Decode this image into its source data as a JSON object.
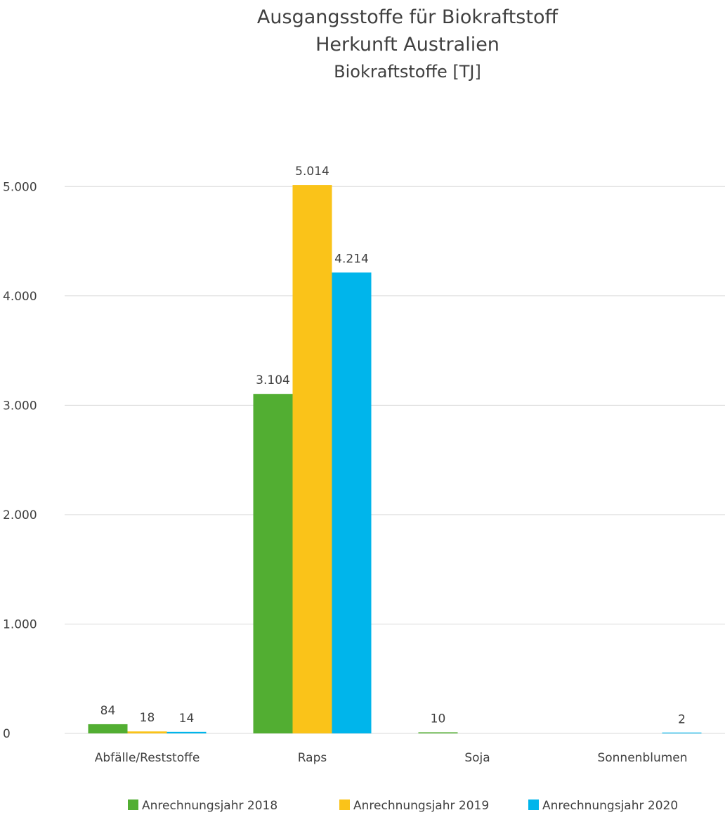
{
  "chart_data": {
    "type": "bar",
    "title": "Ausgangsstoffe für Biokraftstoff",
    "title_line2": "Herkunft Australien",
    "subtitle": "Biokraftstoffe [TJ]",
    "xlabel": "",
    "ylabel": "",
    "categories": [
      "Abfälle/Reststoffe",
      "Raps",
      "Soja",
      "Sonnenblumen"
    ],
    "series": [
      {
        "name": "Anrechnungsjahr 2018",
        "color": "#52ae32",
        "values": [
          84,
          3104,
          10,
          null
        ],
        "labels": [
          "84",
          "3.104",
          "10",
          ""
        ]
      },
      {
        "name": "Anrechnungsjahr 2019",
        "color": "#fac319",
        "values": [
          18,
          5014,
          null,
          null
        ],
        "labels": [
          "18",
          "5.014",
          "",
          ""
        ]
      },
      {
        "name": "Anrechnungsjahr 2020",
        "color": "#00b5eb",
        "values": [
          14,
          4214,
          null,
          2
        ],
        "labels": [
          "14",
          "4.214",
          "",
          "2"
        ]
      }
    ],
    "ylim": [
      0,
      5500
    ],
    "yticks": [
      0,
      1000,
      2000,
      3000,
      4000,
      5000
    ],
    "ytick_labels": [
      "0",
      "1.000",
      "2.000",
      "3.000",
      "4.000",
      "5.000"
    ],
    "grid": true,
    "legend_position": "bottom"
  }
}
